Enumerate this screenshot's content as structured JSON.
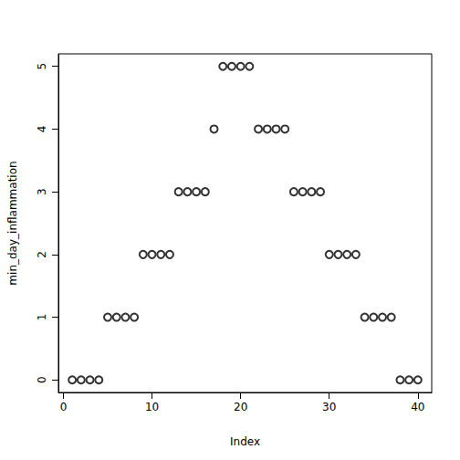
{
  "chart_data": {
    "type": "scatter",
    "x_label": "Index",
    "y_label": "min_day_inflammation",
    "x": [
      1,
      2,
      3,
      4,
      5,
      6,
      7,
      8,
      9,
      10,
      11,
      12,
      13,
      14,
      15,
      16,
      17,
      18,
      19,
      20,
      21,
      22,
      23,
      24,
      25,
      26,
      27,
      28,
      29,
      30,
      31,
      32,
      33,
      34,
      35,
      36,
      37,
      38,
      39,
      40
    ],
    "values": [
      0,
      0,
      0,
      0,
      1,
      1,
      1,
      1,
      2,
      2,
      2,
      2,
      3,
      3,
      3,
      3,
      4,
      5,
      5,
      5,
      5,
      4,
      4,
      4,
      4,
      3,
      3,
      3,
      3,
      2,
      2,
      2,
      2,
      1,
      1,
      1,
      1,
      0,
      0,
      0
    ],
    "xlim": [
      -0.56,
      41.56
    ],
    "ylim": [
      -0.2,
      5.2
    ],
    "xticks": [
      0,
      10,
      20,
      30,
      40
    ],
    "yticks": [
      0,
      1,
      2,
      3,
      4,
      5
    ],
    "color": "#000000",
    "marker": "circle",
    "grid": false
  }
}
